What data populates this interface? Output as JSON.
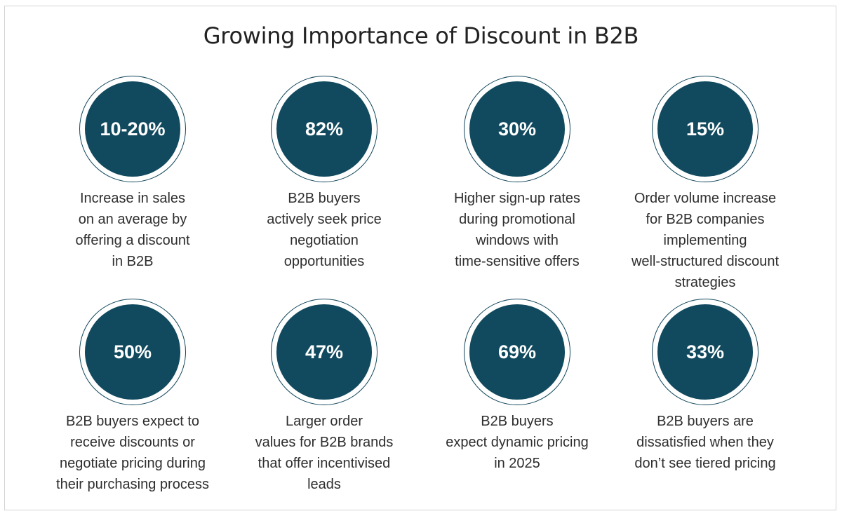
{
  "title": "Growing Importance of Discount in B2B",
  "accent_color": "#114a5e",
  "stats": [
    {
      "value": "10-20%",
      "lines": [
        "Increase in sales",
        "on an average by",
        "offering a discount",
        "in B2B"
      ]
    },
    {
      "value": "82%",
      "lines": [
        "B2B buyers",
        "actively seek price",
        "negotiation",
        "opportunities"
      ]
    },
    {
      "value": "30%",
      "lines": [
        "Higher sign-up rates",
        "during promotional",
        "windows with",
        "time-sensitive offers"
      ]
    },
    {
      "value": "15%",
      "lines": [
        "Order volume increase",
        "for B2B companies",
        "implementing",
        "well-structured discount",
        "strategies"
      ]
    },
    {
      "value": "50%",
      "lines": [
        "B2B buyers expect to",
        "receive discounts or",
        "negotiate pricing during",
        "their purchasing process"
      ]
    },
    {
      "value": "47%",
      "lines": [
        "Larger order",
        "values for B2B brands",
        "that offer incentivised",
        "leads"
      ]
    },
    {
      "value": "69%",
      "lines": [
        "B2B buyers",
        "expect dynamic pricing",
        "in 2025"
      ]
    },
    {
      "value": "33%",
      "lines": [
        "B2B buyers are",
        "dissatisfied when they",
        "don’t see tiered pricing"
      ]
    }
  ]
}
